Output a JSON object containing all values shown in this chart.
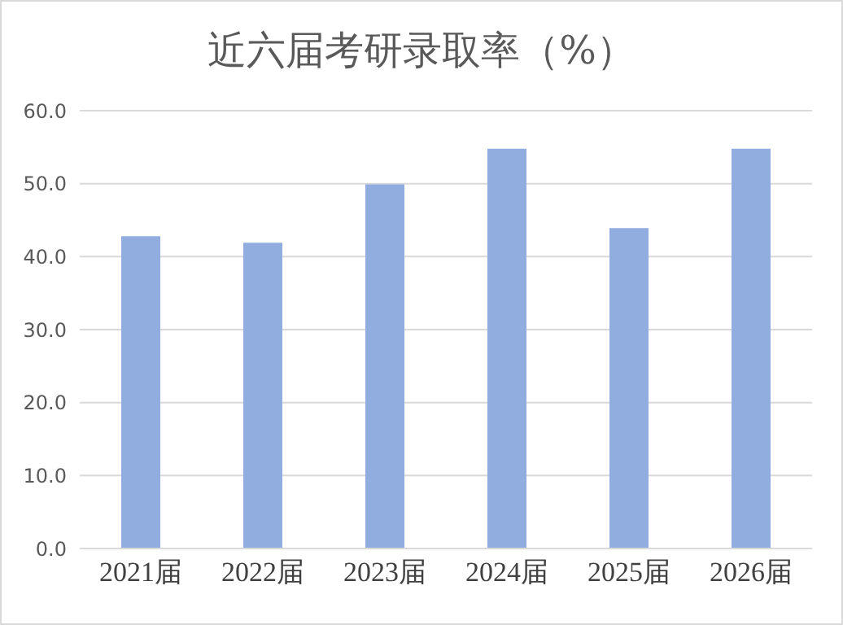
{
  "chart_data": {
    "type": "bar",
    "title": "近六届考研录取率（%）",
    "categories": [
      "2021届",
      "2022届",
      "2023届",
      "2024届",
      "2025届",
      "2026届"
    ],
    "values": [
      42.8,
      41.9,
      49.9,
      54.8,
      43.9,
      54.8
    ],
    "color": "#91acdf",
    "ylim": [
      0,
      60
    ],
    "yticks": [
      {
        "value": 0,
        "label": "0.0"
      },
      {
        "value": 10,
        "label": "10.0"
      },
      {
        "value": 20,
        "label": "20.0"
      },
      {
        "value": 30,
        "label": "30.0"
      },
      {
        "value": 40,
        "label": "40.0"
      },
      {
        "value": 50,
        "label": "50.0"
      },
      {
        "value": 60,
        "label": "60.0"
      }
    ],
    "grid": "y",
    "legend": false
  }
}
